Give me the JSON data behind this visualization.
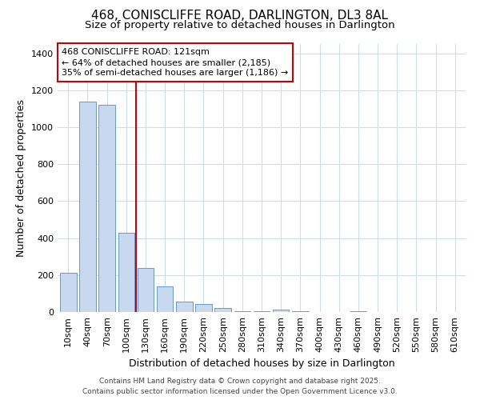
{
  "title": "468, CONISCLIFFE ROAD, DARLINGTON, DL3 8AL",
  "subtitle": "Size of property relative to detached houses in Darlington",
  "xlabel": "Distribution of detached houses by size in Darlington",
  "ylabel": "Number of detached properties",
  "categories": [
    "10sqm",
    "40sqm",
    "70sqm",
    "100sqm",
    "130sqm",
    "160sqm",
    "190sqm",
    "220sqm",
    "250sqm",
    "280sqm",
    "310sqm",
    "340sqm",
    "370sqm",
    "400sqm",
    "430sqm",
    "460sqm",
    "490sqm",
    "520sqm",
    "550sqm",
    "580sqm",
    "610sqm"
  ],
  "values": [
    210,
    1140,
    1120,
    430,
    240,
    140,
    58,
    43,
    22,
    5,
    5,
    13,
    5,
    0,
    0,
    5,
    0,
    0,
    0,
    0,
    0
  ],
  "bar_color": "#c8d8ee",
  "bar_edge_color": "#6699cc",
  "vline_x": 4,
  "vline_color": "#cc0000",
  "annotation_title": "468 CONISCLIFFE ROAD: 121sqm",
  "annotation_line1": "← 64% of detached houses are smaller (2,185)",
  "annotation_line2": "35% of semi-detached houses are larger (1,186) →",
  "annotation_box_facecolor": "#ffffff",
  "annotation_box_edgecolor": "#cc0000",
  "background_color": "#ffffff",
  "plot_bg_color": "#ffffff",
  "grid_color": "#ccddee",
  "footer1": "Contains HM Land Registry data © Crown copyright and database right 2025.",
  "footer2": "Contains public sector information licensed under the Open Government Licence v3.0.",
  "ylim": [
    0,
    1450
  ],
  "title_fontsize": 11,
  "subtitle_fontsize": 9.5,
  "axis_label_fontsize": 9,
  "tick_fontsize": 8,
  "annotation_fontsize": 8,
  "footer_fontsize": 6.5
}
